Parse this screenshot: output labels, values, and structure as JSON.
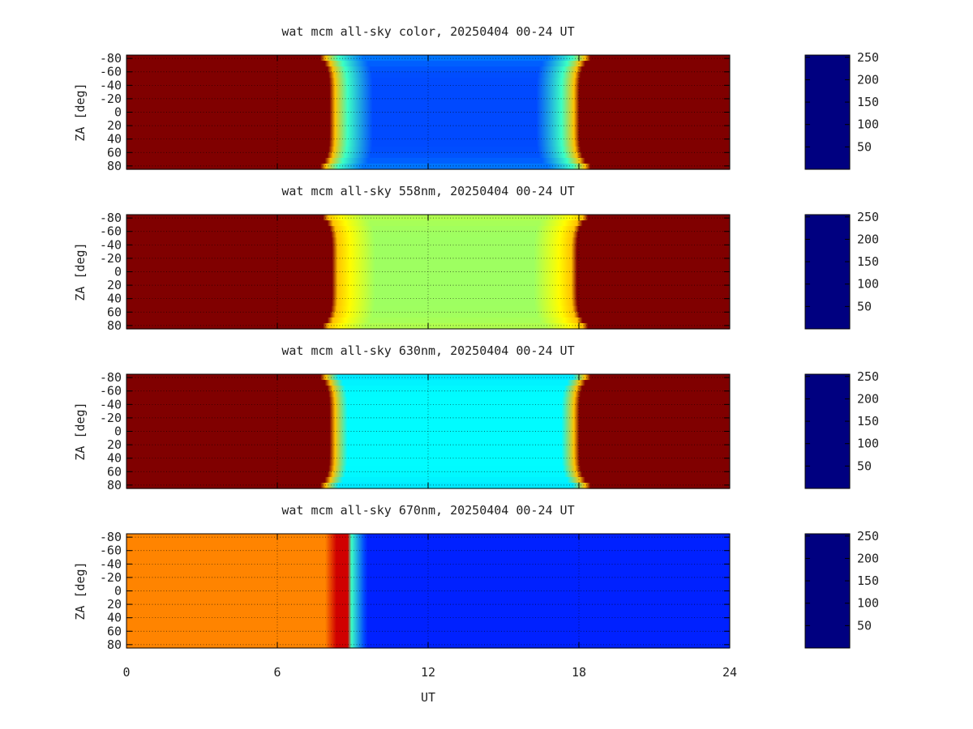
{
  "figure": {
    "xlabel": "UT",
    "x_ticks": [
      "0",
      "6",
      "12",
      "18",
      "24"
    ],
    "y_ticks": [
      "-80",
      "-60",
      "-40",
      "-20",
      "0",
      "20",
      "40",
      "60",
      "80"
    ]
  },
  "chart_data": [
    {
      "type": "heatmap",
      "title": "wat mcm all-sky color, 20250404 00-24 UT",
      "xlabel": "UT",
      "ylabel": "ZA [deg]",
      "xlim": [
        0,
        24
      ],
      "ylim": [
        -85,
        85
      ],
      "x_ticks": [
        0,
        6,
        12,
        18,
        24
      ],
      "y_ticks": [
        -80,
        -60,
        -40,
        -20,
        0,
        20,
        40,
        60,
        80
      ],
      "colorbar": {
        "range": [
          0,
          255
        ],
        "ticks": [
          50,
          100,
          150,
          200,
          250
        ],
        "colormap": "jet"
      },
      "grid": true,
      "day_value": 255,
      "night_value": 50,
      "night_interval_ut_at_zenith": [
        8.2,
        17.9
      ],
      "night_interval_ut_at_horizon": [
        7.7,
        18.5
      ],
      "edge_value": 110
    },
    {
      "type": "heatmap",
      "title": "wat mcm all-sky 558nm, 20250404 00-24 UT",
      "xlabel": "UT",
      "ylabel": "ZA [deg]",
      "xlim": [
        0,
        24
      ],
      "ylim": [
        -85,
        85
      ],
      "x_ticks": [
        0,
        6,
        12,
        18,
        24
      ],
      "y_ticks": [
        -80,
        -60,
        -40,
        -20,
        0,
        20,
        40,
        60,
        80
      ],
      "colorbar": {
        "range": [
          0,
          255
        ],
        "ticks": [
          50,
          100,
          150,
          200,
          250
        ],
        "colormap": "jet"
      },
      "grid": true,
      "day_value": 255,
      "night_value": 135,
      "night_interval_ut_at_zenith": [
        8.3,
        17.8
      ],
      "night_interval_ut_at_horizon": [
        7.8,
        18.4
      ],
      "edge_value": 160
    },
    {
      "type": "heatmap",
      "title": "wat mcm all-sky 630nm, 20250404 00-24 UT",
      "xlabel": "UT",
      "ylabel": "ZA [deg]",
      "xlim": [
        0,
        24
      ],
      "ylim": [
        -85,
        85
      ],
      "x_ticks": [
        0,
        6,
        12,
        18,
        24
      ],
      "y_ticks": [
        -80,
        -60,
        -40,
        -20,
        0,
        20,
        40,
        60,
        80
      ],
      "colorbar": {
        "range": [
          0,
          255
        ],
        "ticks": [
          50,
          100,
          150,
          200,
          250
        ],
        "colormap": "jet"
      },
      "grid": true,
      "day_value": 255,
      "night_value": 95,
      "night_interval_ut_at_zenith": [
        8.2,
        17.9
      ],
      "night_interval_ut_at_horizon": [
        7.7,
        18.5
      ],
      "edge_value": 70
    },
    {
      "type": "heatmap",
      "title": "wat mcm all-sky 670nm, 20250404 00-24 UT",
      "xlabel": "UT",
      "ylabel": "ZA [deg]",
      "xlim": [
        0,
        24
      ],
      "ylim": [
        -85,
        85
      ],
      "x_ticks": [
        0,
        6,
        12,
        18,
        24
      ],
      "y_ticks": [
        -80,
        -60,
        -40,
        -20,
        0,
        20,
        40,
        60,
        80
      ],
      "colorbar": {
        "range": [
          0,
          255
        ],
        "ticks": [
          50,
          100,
          150,
          200,
          250
        ],
        "colormap": "jet"
      },
      "grid": true,
      "day_value": 190,
      "transition_value": 235,
      "night_value": 40,
      "night_interval_ut_at_zenith": [
        8.9,
        24
      ],
      "edge_value": 40
    }
  ]
}
